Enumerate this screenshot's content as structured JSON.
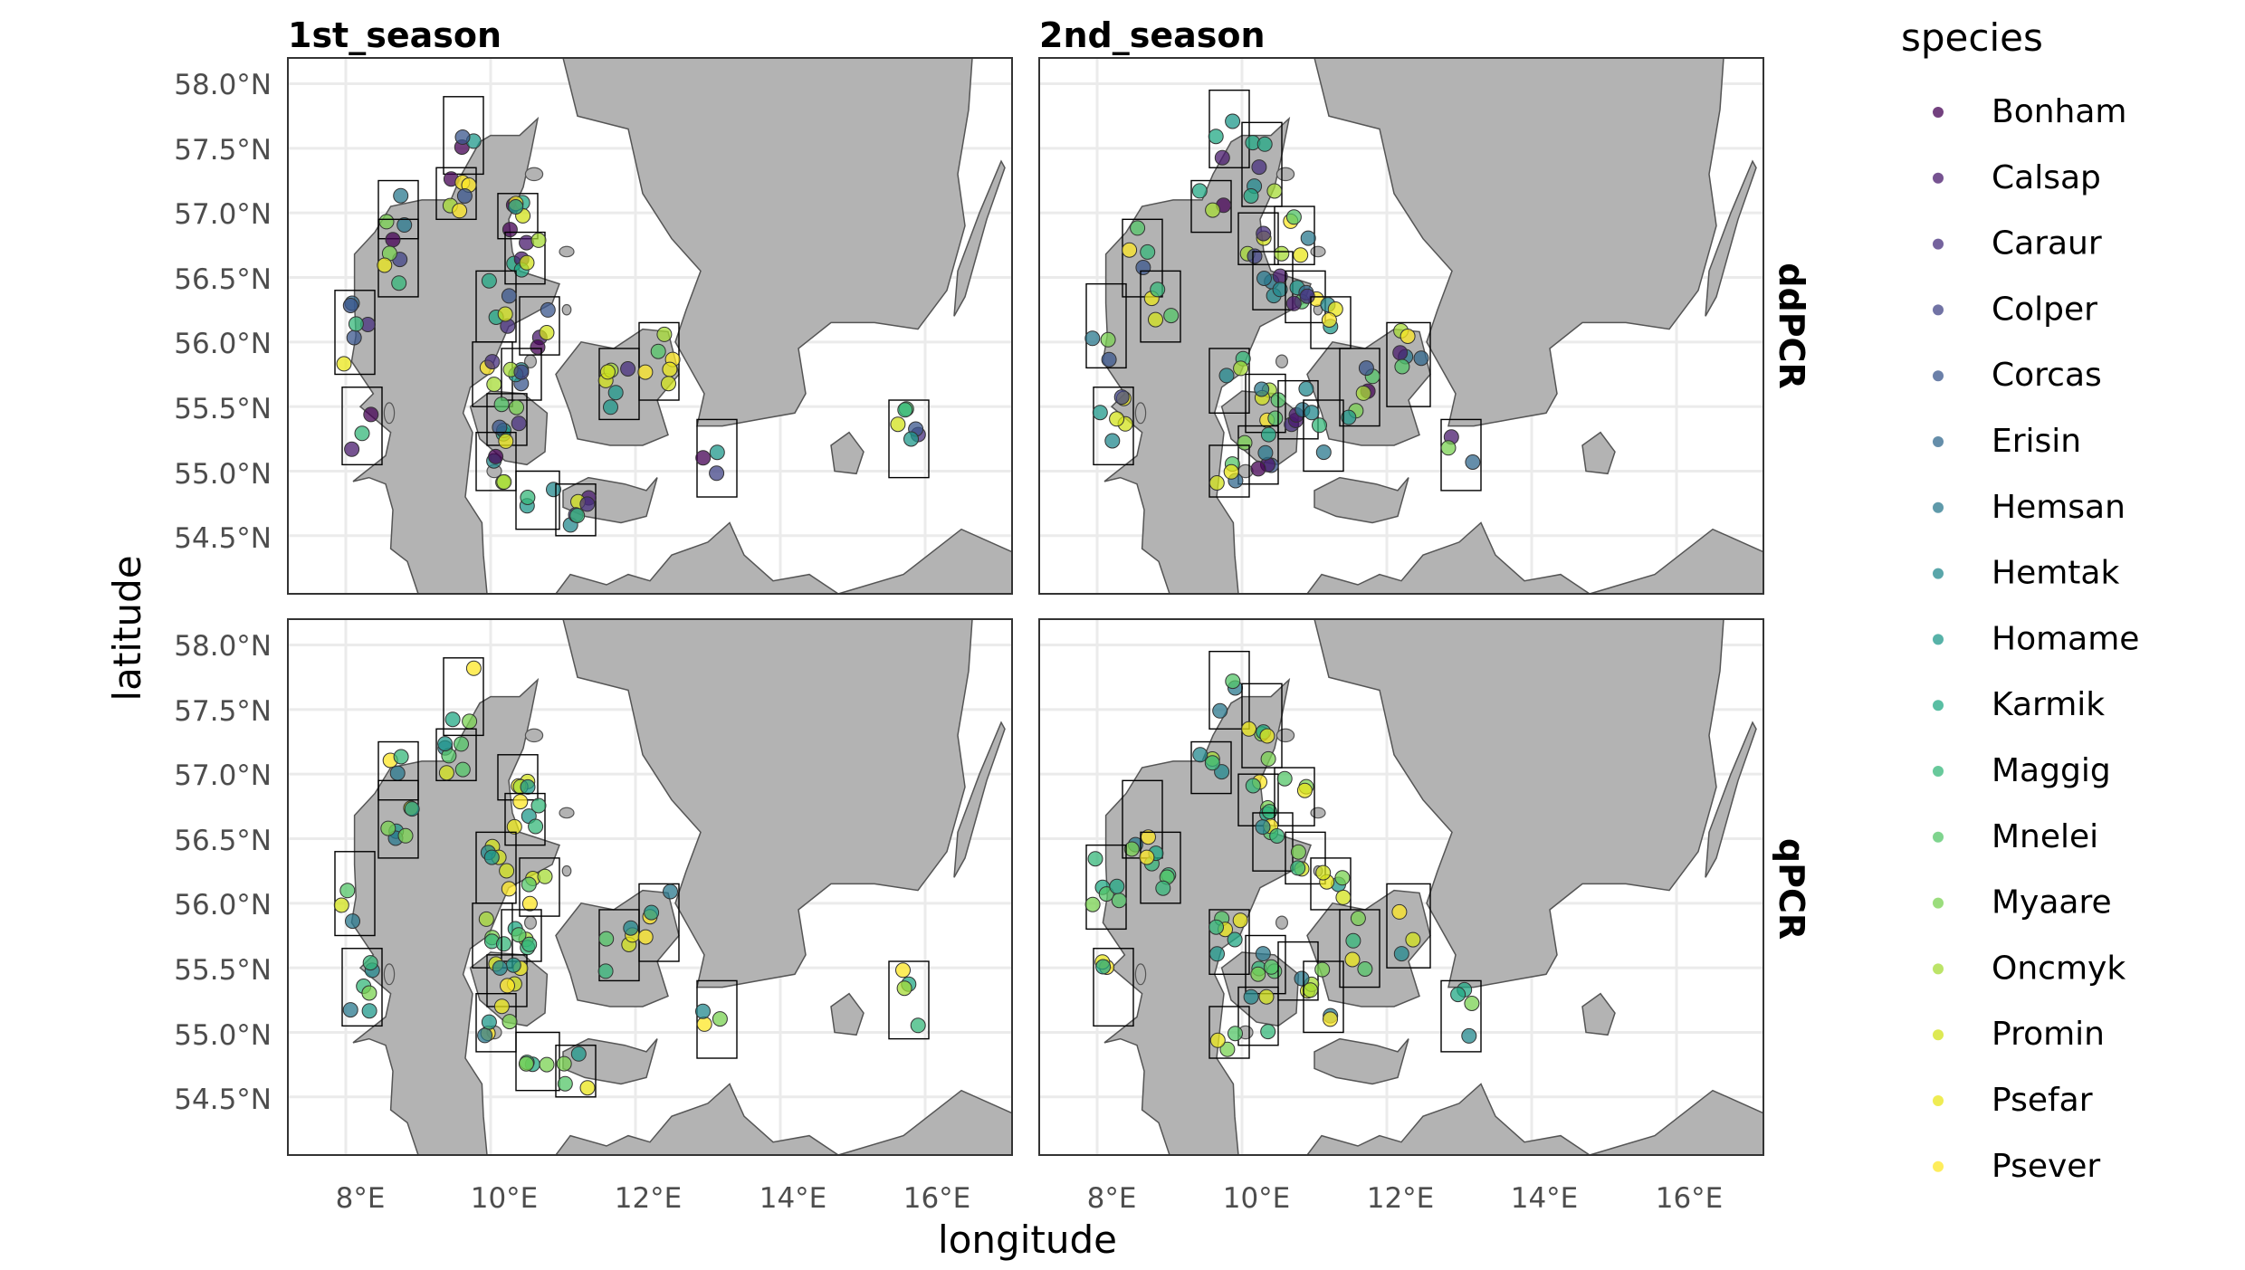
{
  "figure": {
    "facet_columns": [
      "1st_season",
      "2nd_season"
    ],
    "facet_rows": [
      "ddPCR",
      "qPCR"
    ],
    "xlabel": "longitude",
    "ylabel": "latitude",
    "x_ticks": [
      "8°E",
      "10°E",
      "12°E",
      "14°E",
      "16°E"
    ],
    "y_ticks": [
      "58.0°N",
      "57.5°N",
      "57.0°N",
      "56.5°N",
      "56.0°N",
      "55.5°N",
      "55.0°N",
      "54.5°N"
    ],
    "legend_title": "species",
    "colors": {
      "land": "#b3b3b3",
      "coast": "#555555",
      "grid": "#ebebeb",
      "box": "#000000"
    }
  },
  "chart_data": {
    "type": "scatter",
    "map": "Denmark / western Baltic, sampling sites with bounding boxes",
    "xlim": [
      7.2,
      17.2
    ],
    "ylim": [
      54.05,
      58.2
    ],
    "x_ticks": [
      8,
      10,
      12,
      14,
      16
    ],
    "y_ticks": [
      58.0,
      57.5,
      57.0,
      56.5,
      56.0,
      55.5,
      55.0,
      54.5
    ],
    "species": [
      {
        "name": "Bonham",
        "color": "#440154"
      },
      {
        "name": "Calsap",
        "color": "#481a6c"
      },
      {
        "name": "Caraur",
        "color": "#472f7d"
      },
      {
        "name": "Colper",
        "color": "#414487"
      },
      {
        "name": "Corcas",
        "color": "#39568c"
      },
      {
        "name": "Erisin",
        "color": "#31688e"
      },
      {
        "name": "Hemsan",
        "color": "#2a788e"
      },
      {
        "name": "Hemtak",
        "color": "#23888e"
      },
      {
        "name": "Homame",
        "color": "#1f988b"
      },
      {
        "name": "Karmik",
        "color": "#22a884"
      },
      {
        "name": "Maggig",
        "color": "#35b779"
      },
      {
        "name": "Mnelei",
        "color": "#54c568"
      },
      {
        "name": "Myaare",
        "color": "#7ad151"
      },
      {
        "name": "Oncmyk",
        "color": "#a5db36"
      },
      {
        "name": "Promin",
        "color": "#d2e21b"
      },
      {
        "name": "Psefar",
        "color": "#eae51a"
      },
      {
        "name": "Psever",
        "color": "#fde725"
      }
    ],
    "boxes_1st": [
      [
        9.35,
        57.3,
        9.9,
        57.9
      ],
      [
        8.45,
        56.8,
        9.0,
        57.25
      ],
      [
        8.45,
        56.35,
        9.0,
        56.95
      ],
      [
        9.25,
        56.95,
        9.8,
        57.35
      ],
      [
        10.1,
        56.8,
        10.65,
        57.15
      ],
      [
        10.2,
        56.45,
        10.75,
        56.85
      ],
      [
        9.8,
        56.0,
        10.35,
        56.55
      ],
      [
        10.4,
        55.9,
        10.95,
        56.35
      ],
      [
        9.75,
        55.5,
        10.3,
        56.0
      ],
      [
        10.15,
        55.55,
        10.7,
        55.95
      ],
      [
        9.95,
        55.2,
        10.5,
        55.6
      ],
      [
        9.8,
        54.85,
        10.35,
        55.3
      ],
      [
        10.35,
        54.55,
        10.95,
        55.0
      ],
      [
        10.9,
        54.5,
        11.45,
        54.9
      ],
      [
        11.5,
        55.4,
        12.05,
        55.95
      ],
      [
        12.05,
        55.55,
        12.6,
        56.15
      ],
      [
        12.85,
        54.8,
        13.4,
        55.4
      ],
      [
        7.85,
        55.75,
        8.4,
        56.4
      ],
      [
        7.95,
        55.05,
        8.5,
        55.65
      ],
      [
        15.5,
        54.95,
        16.05,
        55.55
      ]
    ],
    "boxes_2nd": [
      [
        9.55,
        57.35,
        10.1,
        57.95
      ],
      [
        10.0,
        57.05,
        10.55,
        57.7
      ],
      [
        9.3,
        56.85,
        9.85,
        57.25
      ],
      [
        8.35,
        56.35,
        8.9,
        56.95
      ],
      [
        8.6,
        56.0,
        9.15,
        56.55
      ],
      [
        9.95,
        56.6,
        10.5,
        57.0
      ],
      [
        10.45,
        56.6,
        11.0,
        57.05
      ],
      [
        10.15,
        56.25,
        10.7,
        56.7
      ],
      [
        10.6,
        56.15,
        11.15,
        56.55
      ],
      [
        10.95,
        55.95,
        11.5,
        56.35
      ],
      [
        12.0,
        55.5,
        12.6,
        56.15
      ],
      [
        11.35,
        55.35,
        11.9,
        55.95
      ],
      [
        9.55,
        55.45,
        10.1,
        55.95
      ],
      [
        10.05,
        55.3,
        10.6,
        55.75
      ],
      [
        10.5,
        55.25,
        11.05,
        55.7
      ],
      [
        10.85,
        55.0,
        11.4,
        55.55
      ],
      [
        9.95,
        54.9,
        10.5,
        55.35
      ],
      [
        9.55,
        54.8,
        10.1,
        55.2
      ],
      [
        7.95,
        55.05,
        8.5,
        55.65
      ],
      [
        12.75,
        54.85,
        13.3,
        55.4
      ],
      [
        7.85,
        55.8,
        8.4,
        56.45
      ]
    ]
  }
}
